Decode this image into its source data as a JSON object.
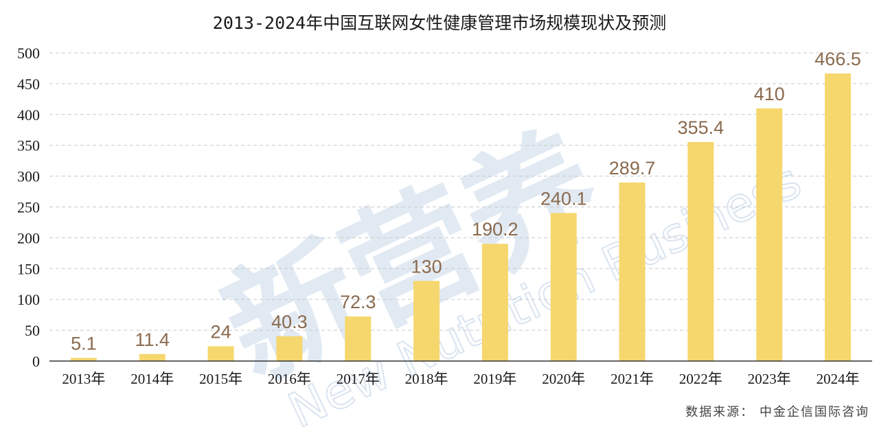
{
  "chart_data": {
    "type": "bar",
    "title": "2013-2024年中国互联网女性健康管理市场规模现状及预测",
    "categories": [
      "2013年",
      "2014年",
      "2015年",
      "2016年",
      "2017年",
      "2018年",
      "2019年",
      "2020年",
      "2021年",
      "2022年",
      "2023年",
      "2024年"
    ],
    "values": [
      5.1,
      11.4,
      24,
      40.3,
      72.3,
      130,
      190.2,
      240.1,
      289.7,
      355.4,
      410,
      466.5
    ],
    "value_labels": [
      "5.1",
      "11.4",
      "24",
      "40.3",
      "72.3",
      "130",
      "190.2",
      "240.1",
      "289.7",
      "355.4",
      "410",
      "466.5"
    ],
    "yticks": [
      "0",
      "50",
      "100",
      "150",
      "200",
      "250",
      "300",
      "350",
      "400",
      "450",
      "500"
    ],
    "ylim": [
      0,
      500
    ],
    "grid": true,
    "legend": "none",
    "bar_color": "#f5d76e",
    "label_color": "#8a6a4e"
  },
  "source_text": "数据来源： 中金企信国际咨询",
  "watermark": {
    "main": "新营养",
    "sub": "New Nutrition Business",
    "registered": "®"
  }
}
